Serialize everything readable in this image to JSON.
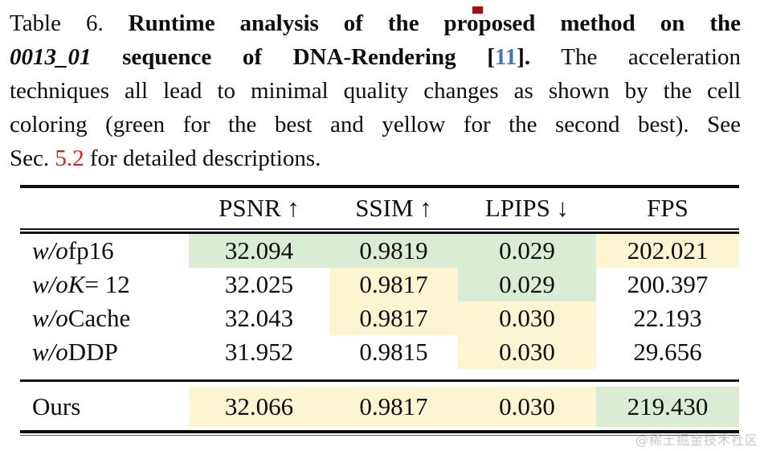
{
  "colors": {
    "best": "#dbecd4",
    "second": "#fbf5d1",
    "cite": "#4279b8",
    "ref": "#ee1b1e"
  },
  "caption": {
    "lines": [
      [
        {
          "t": "Table 6. ",
          "s": "n"
        },
        {
          "t": "Runtime analysis of the proposed method on the",
          "s": "b"
        }
      ],
      [
        {
          "t": "0013_01",
          "s": "bi"
        },
        {
          "t": " sequence of DNA-Rendering ",
          "s": "b"
        },
        {
          "t": "[",
          "s": "b"
        },
        {
          "t": "11",
          "s": "cite"
        },
        {
          "t": "].",
          "s": "b"
        },
        {
          "t": " The acceleration",
          "s": "n"
        }
      ],
      [
        {
          "t": "techniques all lead to minimal quality changes as shown by the cell",
          "s": "n"
        }
      ],
      [
        {
          "t": "coloring (green for the best and yellow for the second best). See",
          "s": "n"
        }
      ],
      [
        {
          "t": "Sec. ",
          "s": "n"
        },
        {
          "t": "5.2",
          "s": "ref"
        },
        {
          "t": " for detailed descriptions.",
          "s": "n"
        }
      ]
    ]
  },
  "table": {
    "headers": [
      "PSNR ↑",
      "SSIM ↑",
      "LPIPS ↓",
      "FPS"
    ],
    "rows": [
      {
        "label": [
          {
            "t": "w/o ",
            "s": "i"
          },
          {
            "t": "fp16",
            "s": "n"
          }
        ],
        "cells": [
          {
            "v": "32.094",
            "h": "best"
          },
          {
            "v": "0.9819",
            "h": "best"
          },
          {
            "v": "0.029",
            "h": "best"
          },
          {
            "v": "202.021",
            "h": "second"
          }
        ]
      },
      {
        "label": [
          {
            "t": "w/o ",
            "s": "i"
          },
          {
            "t": "K",
            "s": "mi"
          },
          {
            "t": " = 12",
            "s": "n"
          }
        ],
        "cells": [
          {
            "v": "32.025",
            "h": null
          },
          {
            "v": "0.9817",
            "h": "second"
          },
          {
            "v": "0.029",
            "h": "best"
          },
          {
            "v": "200.397",
            "h": null
          }
        ]
      },
      {
        "label": [
          {
            "t": "w/o ",
            "s": "i"
          },
          {
            "t": "Cache",
            "s": "n"
          }
        ],
        "cells": [
          {
            "v": "32.043",
            "h": null
          },
          {
            "v": "0.9817",
            "h": "second"
          },
          {
            "v": "0.030",
            "h": "second"
          },
          {
            "v": "22.193",
            "h": null
          }
        ]
      },
      {
        "label": [
          {
            "t": "w/o ",
            "s": "i"
          },
          {
            "t": "DDP",
            "s": "n"
          }
        ],
        "cells": [
          {
            "v": "31.952",
            "h": null
          },
          {
            "v": "0.9815",
            "h": null
          },
          {
            "v": "0.030",
            "h": "second"
          },
          {
            "v": "29.656",
            "h": null
          }
        ]
      }
    ],
    "footer_row": {
      "label": [
        {
          "t": "Ours",
          "s": "n"
        }
      ],
      "cells": [
        {
          "v": "32.066",
          "h": "second"
        },
        {
          "v": "0.9817",
          "h": "second"
        },
        {
          "v": "0.030",
          "h": "second"
        },
        {
          "v": "219.430",
          "h": "best"
        }
      ]
    }
  },
  "watermark": {
    "text": "@稀土掘金技术社区"
  }
}
